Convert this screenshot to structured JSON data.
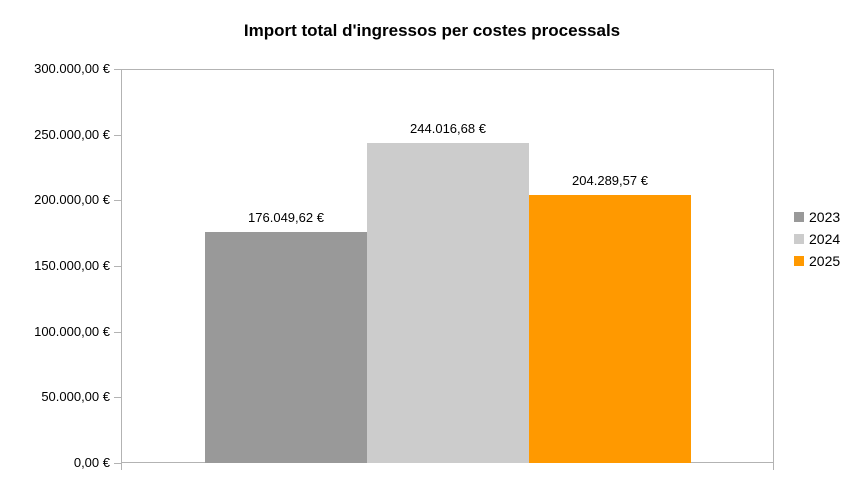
{
  "chart_data": {
    "type": "bar",
    "title": "Import total d'ingressos per costes processals",
    "series": [
      {
        "name": "2023",
        "value": 176049.62,
        "value_label": "176.049,62 €",
        "color": "#999999"
      },
      {
        "name": "2024",
        "value": 244016.68,
        "value_label": "244.016,68 €",
        "color": "#cccccc"
      },
      {
        "name": "2025",
        "value": 204289.57,
        "value_label": "204.289,57 €",
        "color": "#ff9900"
      }
    ],
    "y_axis": {
      "min": 0,
      "max": 300000,
      "step": 50000,
      "tick_labels": [
        "300.000,00 €",
        "250.000,00 €",
        "200.000,00 €",
        "150.000,00 €",
        "100.000,00 €",
        "50.000,00 €",
        "0,00 €"
      ]
    },
    "legend": {
      "position": "right",
      "entries": [
        "2023",
        "2024",
        "2025"
      ]
    },
    "grid": false,
    "axis_color": "#b3b3b3",
    "text_color": "#000000",
    "background_color": "#ffffff"
  }
}
